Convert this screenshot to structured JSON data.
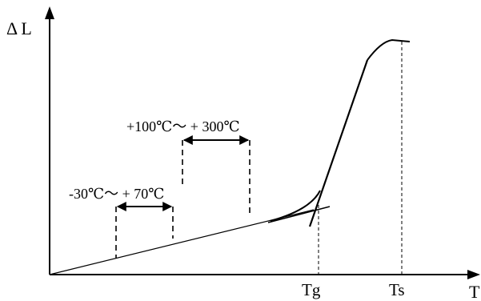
{
  "axes": {
    "y_label": "Δ L",
    "x_label": "T"
  },
  "markers": {
    "tg": "Tg",
    "ts": "Ts"
  },
  "ranges": {
    "low": "-30℃～ + 70℃",
    "high": "+100℃～ + 300℃"
  },
  "colors": {
    "ink": "#000000",
    "background": "#ffffff"
  }
}
